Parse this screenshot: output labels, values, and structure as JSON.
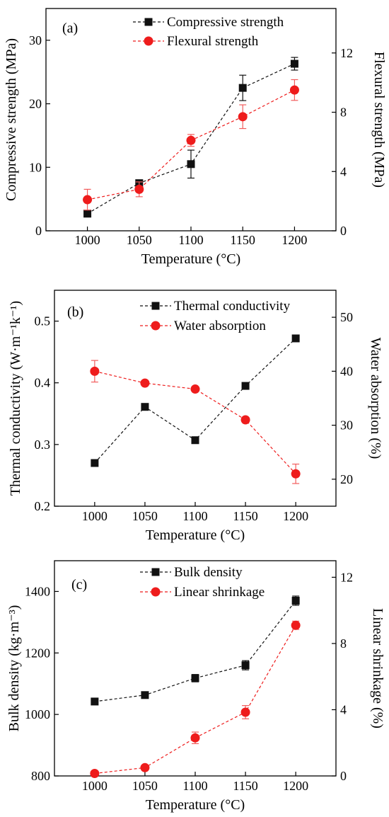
{
  "colors": {
    "series_black": "#111111",
    "series_red": "#ee1c1c",
    "errbar_red": "#f25c5c"
  },
  "chart_data": [
    {
      "type": "line",
      "panel_label": "(a)",
      "x": [
        1000,
        1050,
        1100,
        1150,
        1200
      ],
      "xlim": [
        960,
        1240
      ],
      "xticks": [
        1000,
        1050,
        1100,
        1150,
        1200
      ],
      "xlabel": "Temperature (°C)",
      "ylabel": "Compressive strength (MPa)",
      "ylim": [
        0,
        35
      ],
      "yticks": [
        0,
        10,
        20,
        30
      ],
      "y2label": "Flexural strength (MPa)",
      "y2lim": [
        0,
        15
      ],
      "y2ticks": [
        0,
        4,
        8,
        12
      ],
      "legend_position": "top-right",
      "grid": false,
      "series": [
        {
          "name": "Compressive strength",
          "axis": "left",
          "marker": "square",
          "color": "#111111",
          "values": [
            2.7,
            7.5,
            10.5,
            22.5,
            26.3
          ],
          "errors": [
            0,
            0,
            2.2,
            2.0,
            1.0
          ]
        },
        {
          "name": "Flexural strength",
          "axis": "right",
          "marker": "circle",
          "color": "#ee1c1c",
          "values": [
            2.1,
            2.8,
            6.1,
            7.7,
            9.5
          ],
          "errors": [
            0.7,
            0.5,
            0.4,
            0.8,
            0.7
          ]
        }
      ]
    },
    {
      "type": "line",
      "panel_label": "(b)",
      "x": [
        1000,
        1050,
        1100,
        1150,
        1200
      ],
      "xlim": [
        960,
        1240
      ],
      "xticks": [
        1000,
        1050,
        1100,
        1150,
        1200
      ],
      "xlabel": "Temperature (°C)",
      "ylabel": "Thermal conductivity (W·m⁻¹k⁻¹)",
      "ylim": [
        0.2,
        0.55
      ],
      "yticks": [
        0.2,
        0.3,
        0.4,
        0.5
      ],
      "yticklabels": [
        "0.2",
        "0.3",
        "0.4",
        "0.5"
      ],
      "y2label": "Water absorption (%)",
      "y2lim": [
        15,
        55
      ],
      "y2ticks": [
        20,
        30,
        40,
        50
      ],
      "legend_position": "top-right",
      "grid": false,
      "series": [
        {
          "name": "Thermal conductivity",
          "axis": "left",
          "marker": "square",
          "color": "#111111",
          "values": [
            0.27,
            0.361,
            0.307,
            0.395,
            0.472
          ],
          "errors": [
            0,
            0,
            0,
            0,
            0
          ]
        },
        {
          "name": "Water absorption",
          "axis": "right",
          "marker": "circle",
          "color": "#ee1c1c",
          "values": [
            40.0,
            37.8,
            36.7,
            31.0,
            21.0
          ],
          "errors": [
            2.0,
            0,
            0,
            0,
            1.8
          ]
        }
      ]
    },
    {
      "type": "line",
      "panel_label": "(c)",
      "x": [
        1000,
        1050,
        1100,
        1150,
        1200
      ],
      "xlim": [
        960,
        1240
      ],
      "xticks": [
        1000,
        1050,
        1100,
        1150,
        1200
      ],
      "xlabel": "Temperature (°C)",
      "ylabel": "Bulk density (kg·m⁻³)",
      "ylim": [
        800,
        1500
      ],
      "yticks": [
        800,
        1000,
        1200,
        1400
      ],
      "y2label": "Linear shrinkage (%)",
      "y2lim": [
        0,
        13
      ],
      "y2ticks": [
        0,
        4,
        8,
        12
      ],
      "legend_position": "top-right",
      "grid": false,
      "series": [
        {
          "name": "Bulk density",
          "axis": "left",
          "marker": "square",
          "color": "#111111",
          "values": [
            1042,
            1063,
            1118,
            1160,
            1370
          ],
          "errors": [
            0,
            0,
            12,
            15,
            15
          ]
        },
        {
          "name": "Linear shrinkage",
          "axis": "right",
          "marker": "circle",
          "color": "#ee1c1c",
          "values": [
            0.15,
            0.5,
            2.3,
            3.85,
            9.1
          ],
          "errors": [
            0,
            0,
            0.35,
            0.4,
            0.25
          ]
        }
      ]
    }
  ]
}
